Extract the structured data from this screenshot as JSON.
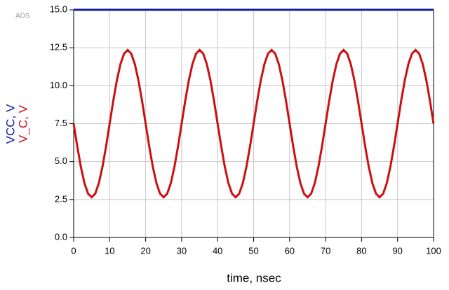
{
  "chart_data": {
    "type": "line",
    "watermark": "ADS",
    "xlabel": "time, nsec",
    "x": [
      0,
      1,
      2,
      3,
      4,
      5,
      6,
      7,
      8,
      9,
      10,
      11,
      12,
      13,
      14,
      15,
      16,
      17,
      18,
      19,
      20,
      21,
      22,
      23,
      24,
      25,
      26,
      27,
      28,
      29,
      30,
      31,
      32,
      33,
      34,
      35,
      36,
      37,
      38,
      39,
      40,
      41,
      42,
      43,
      44,
      45,
      46,
      47,
      48,
      49,
      50,
      51,
      52,
      53,
      54,
      55,
      56,
      57,
      58,
      59,
      60,
      61,
      62,
      63,
      64,
      65,
      66,
      67,
      68,
      69,
      70,
      71,
      72,
      73,
      74,
      75,
      76,
      77,
      78,
      79,
      80,
      81,
      82,
      83,
      84,
      85,
      86,
      87,
      88,
      89,
      90,
      91,
      92,
      93,
      94,
      95,
      96,
      97,
      98,
      99,
      100
    ],
    "series": [
      {
        "name": "VCC, V",
        "color": "#1020a0",
        "values": [
          15,
          15,
          15,
          15,
          15,
          15,
          15,
          15,
          15,
          15,
          15,
          15,
          15,
          15,
          15,
          15,
          15,
          15,
          15,
          15,
          15,
          15,
          15,
          15,
          15,
          15,
          15,
          15,
          15,
          15,
          15,
          15,
          15,
          15,
          15,
          15,
          15,
          15,
          15,
          15,
          15,
          15,
          15,
          15,
          15,
          15,
          15,
          15,
          15,
          15,
          15,
          15,
          15,
          15,
          15,
          15,
          15,
          15,
          15,
          15,
          15,
          15,
          15,
          15,
          15,
          15,
          15,
          15,
          15,
          15,
          15,
          15,
          15,
          15,
          15,
          15,
          15,
          15,
          15,
          15,
          15,
          15,
          15,
          15,
          15,
          15,
          15,
          15,
          15,
          15,
          15,
          15,
          15,
          15,
          15,
          15,
          15,
          15,
          15,
          15,
          15
        ]
      },
      {
        "name": "V_C, V",
        "color": "#cc1010",
        "values": [
          7.5,
          6.0,
          4.65,
          3.58,
          2.89,
          2.65,
          2.89,
          3.58,
          4.65,
          6.0,
          7.5,
          9.0,
          10.35,
          11.42,
          12.11,
          12.35,
          12.11,
          11.42,
          10.35,
          9.0,
          7.5,
          6.0,
          4.65,
          3.58,
          2.89,
          2.65,
          2.89,
          3.58,
          4.65,
          6.0,
          7.5,
          9.0,
          10.35,
          11.42,
          12.11,
          12.35,
          12.11,
          11.42,
          10.35,
          9.0,
          7.5,
          6.0,
          4.65,
          3.58,
          2.89,
          2.65,
          2.89,
          3.58,
          4.65,
          6.0,
          7.5,
          9.0,
          10.35,
          11.42,
          12.11,
          12.35,
          12.11,
          11.42,
          10.35,
          9.0,
          7.5,
          6.0,
          4.65,
          3.58,
          2.89,
          2.65,
          2.89,
          3.58,
          4.65,
          6.0,
          7.5,
          9.0,
          10.35,
          11.42,
          12.11,
          12.35,
          12.11,
          11.42,
          10.35,
          9.0,
          7.5,
          6.0,
          4.65,
          3.58,
          2.89,
          2.65,
          2.89,
          3.58,
          4.65,
          6.0,
          7.5,
          9.0,
          10.35,
          11.42,
          12.11,
          12.35,
          12.11,
          11.42,
          10.35,
          9.0,
          7.5
        ]
      }
    ],
    "xlim": [
      0,
      100
    ],
    "xticks": [
      0,
      10,
      20,
      30,
      40,
      50,
      60,
      70,
      80,
      90,
      100
    ],
    "ylim": [
      0,
      15
    ],
    "yticks": [
      {
        "value": 0,
        "label": "0.0"
      },
      2.5,
      {
        "value": 5,
        "label": "5.0"
      },
      7.5,
      {
        "value": 10,
        "label": "10.0"
      },
      12.5,
      {
        "value": 15,
        "label": "15.0"
      }
    ],
    "grid": true
  }
}
